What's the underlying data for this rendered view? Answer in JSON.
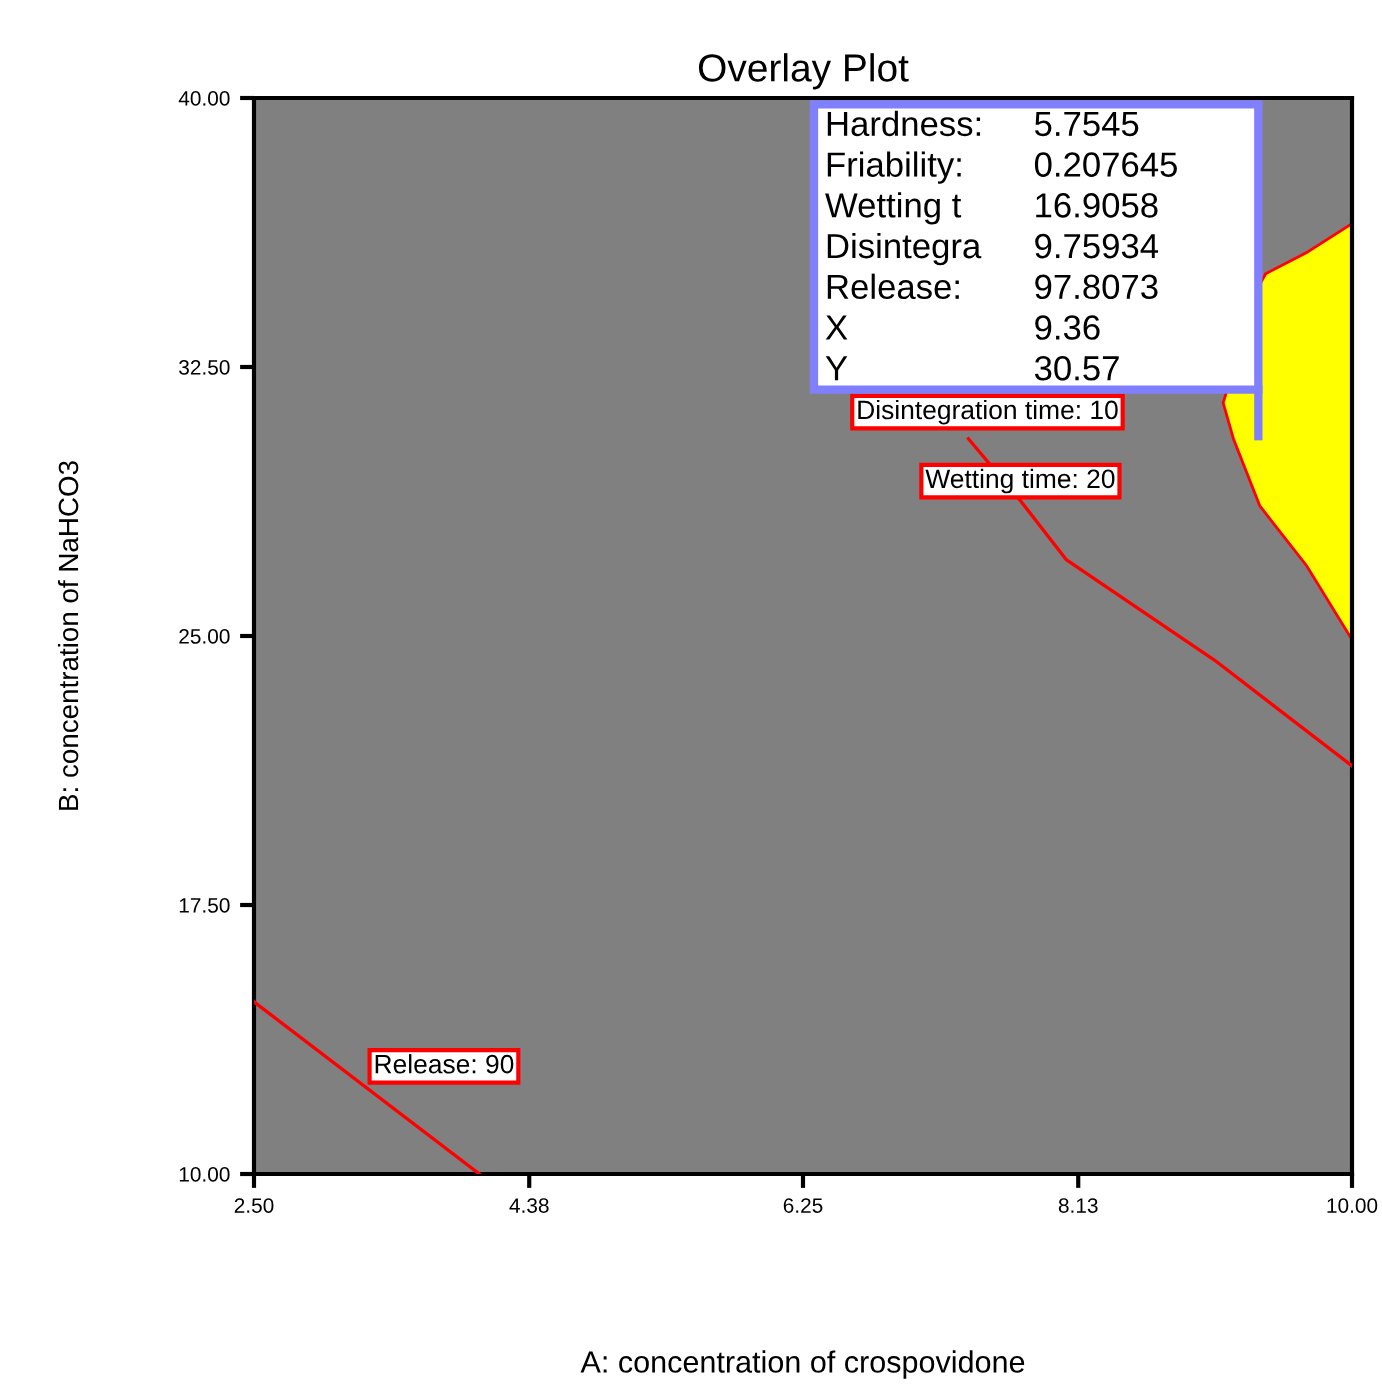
{
  "chart_data": {
    "type": "line",
    "title": "Overlay Plot",
    "xlabel": "A: concentration of crospovidone",
    "ylabel": "B: concentration of NaHCO3",
    "xlim": [
      2.5,
      10.0
    ],
    "ylim": [
      10.0,
      40.0
    ],
    "xticks": [
      {
        "value": 2.5,
        "label": "2.50"
      },
      {
        "value": 4.38,
        "label": "4.38"
      },
      {
        "value": 6.25,
        "label": "6.25"
      },
      {
        "value": 8.13,
        "label": "8.13"
      },
      {
        "value": 10.0,
        "label": "10.00"
      }
    ],
    "yticks": [
      {
        "value": 10.0,
        "label": "10.00"
      },
      {
        "value": 17.5,
        "label": "17.50"
      },
      {
        "value": 25.0,
        "label": "25.00"
      },
      {
        "value": 32.5,
        "label": "32.50"
      },
      {
        "value": 40.0,
        "label": "40.00"
      }
    ],
    "grid": false,
    "legend": false,
    "series": [
      {
        "color": "#ff0000",
        "x": [
          2.5,
          4.04
        ],
        "values": [
          14.8,
          10.0
        ]
      },
      {
        "color": "#ff0000",
        "x": [
          7.38,
          7.73,
          8.05,
          9.06,
          10.0
        ],
        "values": [
          30.5,
          28.8,
          27.12,
          24.33,
          21.38
        ]
      },
      {
        "type": "area",
        "color": "#ffff00",
        "x": [
          10.0,
          9.69,
          9.37,
          9.19,
          9.12,
          9.37,
          9.41,
          9.69,
          10.0
        ],
        "values": [
          24.9,
          26.96,
          28.63,
          30.5,
          31.5,
          34.8,
          35.1,
          35.69,
          36.5
        ]
      }
    ],
    "annotations": [
      "Release: 90",
      "Wetting time: 20",
      "Disintegration time: 10",
      "Hardness:",
      "5.7545",
      "Friability:",
      "0.207645",
      "Wetting t",
      "16.9058",
      "Disintegra",
      "9.75934",
      "Release:",
      "97.8073",
      "X",
      "9.36",
      "Y",
      "30.57"
    ]
  }
}
